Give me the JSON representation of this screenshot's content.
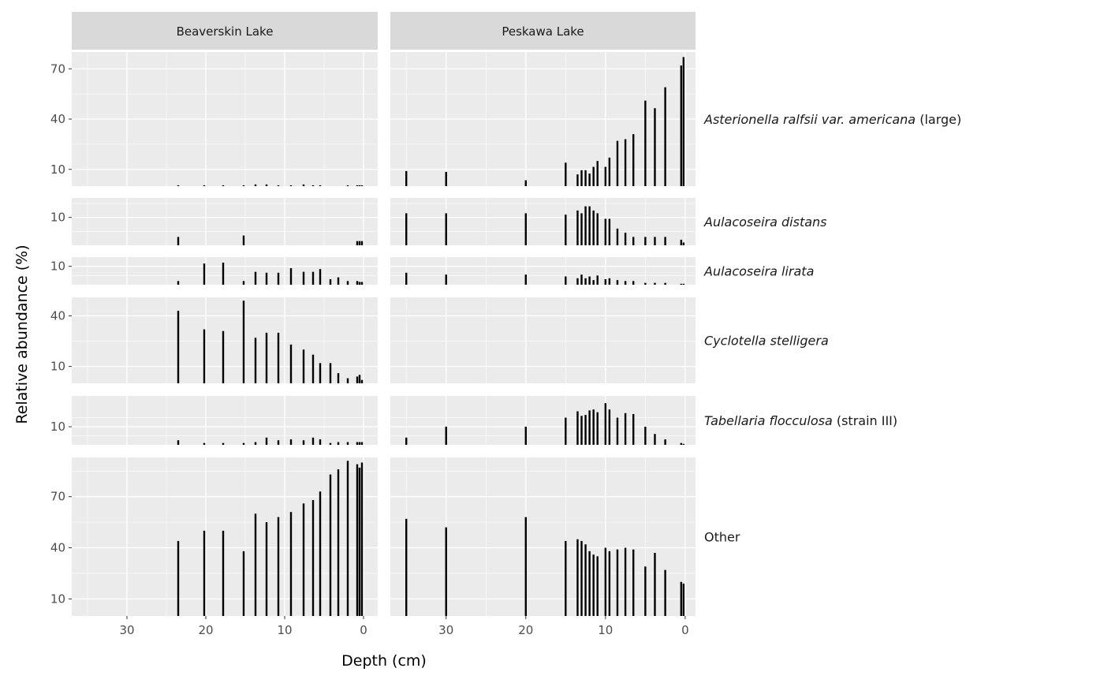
{
  "chart_data": {
    "type": "bar",
    "xlabel": "Depth (cm)",
    "ylabel": "Relative abundance (%)",
    "x_reversed": true,
    "columns": [
      "Beaverskin Lake",
      "Peskawa Lake"
    ],
    "xlim": {
      "Beaverskin Lake": [
        37,
        -1.8
      ],
      "Peskawa Lake": [
        37,
        -1.3
      ]
    },
    "xticks": [
      30,
      20,
      10,
      0
    ],
    "rows": [
      {
        "name": "Asterionella ralfsii var. americana",
        "name_italic": "Asterionella ralfsii var. americana",
        "name_suffix": " (large)",
        "ylim": [
          0,
          80
        ],
        "yticks": [
          10,
          40,
          70
        ]
      },
      {
        "name": "Aulacoseira distans",
        "name_italic": "Aulacoseira distans",
        "name_suffix": "",
        "ylim": [
          0,
          17
        ],
        "yticks": [
          10
        ]
      },
      {
        "name": "Aulacoseira lirata",
        "name_italic": "Aulacoseira lirata",
        "name_suffix": "",
        "ylim": [
          0,
          15
        ],
        "yticks": [
          10
        ]
      },
      {
        "name": "Cyclotella stelligera",
        "name_italic": "Cyclotella stelligera",
        "name_suffix": "",
        "ylim": [
          0,
          51
        ],
        "yticks": [
          10,
          40
        ]
      },
      {
        "name": "Tabellaria flocculosa",
        "name_italic": "Tabellaria flocculosa",
        "name_suffix": " (strain III)",
        "ylim": [
          0,
          27
        ],
        "yticks": [
          10
        ]
      },
      {
        "name": "Other",
        "name_italic": "",
        "name_suffix": "Other",
        "ylim": [
          0,
          93
        ],
        "yticks": [
          10,
          40,
          70
        ]
      }
    ],
    "series": [
      {
        "lake": "Beaverskin Lake",
        "depth": [
          23.5,
          20.2,
          17.8,
          15.2,
          13.7,
          12.3,
          10.8,
          9.2,
          7.6,
          6.4,
          5.5,
          4.2,
          3.2,
          2,
          0.8,
          0.5,
          0.2
        ],
        "values": {
          "Asterionella ralfsii var. americana": [
            0.5,
            0.5,
            0.5,
            0.5,
            1,
            1,
            0.5,
            0.5,
            1,
            0.5,
            0.5,
            0,
            0,
            0.5,
            0.5,
            0.5,
            0.5
          ],
          "Aulacoseira distans": [
            3,
            0,
            0,
            3.5,
            0,
            0,
            0,
            0,
            0,
            0,
            0,
            0,
            0,
            0,
            1.5,
            1.5,
            1.5
          ],
          "Aulacoseira lirata": [
            2,
            11.5,
            12,
            2,
            7,
            6.5,
            6.5,
            9,
            7,
            7,
            8.5,
            3,
            4,
            2,
            2,
            1.5,
            1.5
          ],
          "Cyclotella stelligera": [
            43,
            32,
            31,
            49,
            27,
            30,
            30,
            23,
            20,
            17,
            12,
            12,
            6,
            3,
            4,
            5,
            2
          ],
          "Tabellaria flocculosa": [
            2.5,
            1,
            1,
            1,
            1.5,
            4,
            2.5,
            3,
            2.5,
            4,
            3,
            1,
            1.5,
            1.5,
            1.5,
            1.5,
            1.5
          ],
          "Other": [
            44,
            50,
            50,
            38,
            60,
            55,
            58,
            61,
            66,
            68,
            73,
            83,
            86,
            91,
            89,
            87,
            90
          ]
        }
      },
      {
        "lake": "Peskawa Lake",
        "depth": [
          35,
          30,
          20,
          15,
          13.5,
          13,
          12.5,
          12,
          11.5,
          11,
          10,
          9.5,
          8.5,
          7.5,
          6.5,
          5,
          3.8,
          2.5,
          0.5,
          0.2
        ],
        "values": {
          "Asterionella ralfsii var. americana": [
            9,
            8.5,
            3.5,
            14,
            7,
            9.5,
            9.5,
            7.5,
            11.5,
            15,
            11.5,
            17,
            27,
            28,
            31,
            51,
            46.5,
            59,
            72,
            77
          ],
          "Aulacoseira distans": [
            11.5,
            11.5,
            11.5,
            11,
            12.5,
            11.5,
            14,
            14,
            12.5,
            11.5,
            9.5,
            9.5,
            6,
            4.5,
            3,
            3,
            3,
            3,
            2,
            1
          ],
          "Aulacoseira lirata": [
            6.5,
            5.5,
            5.5,
            4.5,
            3.5,
            5.5,
            3.5,
            4.5,
            2.5,
            5,
            3,
            3.5,
            2.5,
            2,
            2,
            1,
            1,
            1,
            0.5,
            0.5
          ],
          "Cyclotella stelligera": [
            0,
            0,
            0,
            0,
            0,
            0,
            0,
            0,
            0,
            0,
            0,
            0,
            0,
            0,
            0,
            0,
            0,
            0,
            0,
            0
          ],
          "Tabellaria flocculosa": [
            4,
            10,
            10,
            15,
            18.5,
            16,
            16.5,
            19,
            19.5,
            18,
            23,
            19.5,
            15,
            17.5,
            17,
            10,
            6,
            3,
            1,
            0.5
          ],
          "Other": [
            57,
            52,
            58,
            44,
            45,
            44,
            42,
            38,
            36,
            35,
            40,
            38,
            39,
            40,
            39,
            29,
            37,
            27,
            20,
            19
          ]
        }
      }
    ],
    "colors": {
      "panel": "#ebebeb",
      "strip": "#d9d9d9",
      "grid_major": "#ffffff",
      "bar": "#000000",
      "tick": "#333333"
    }
  }
}
